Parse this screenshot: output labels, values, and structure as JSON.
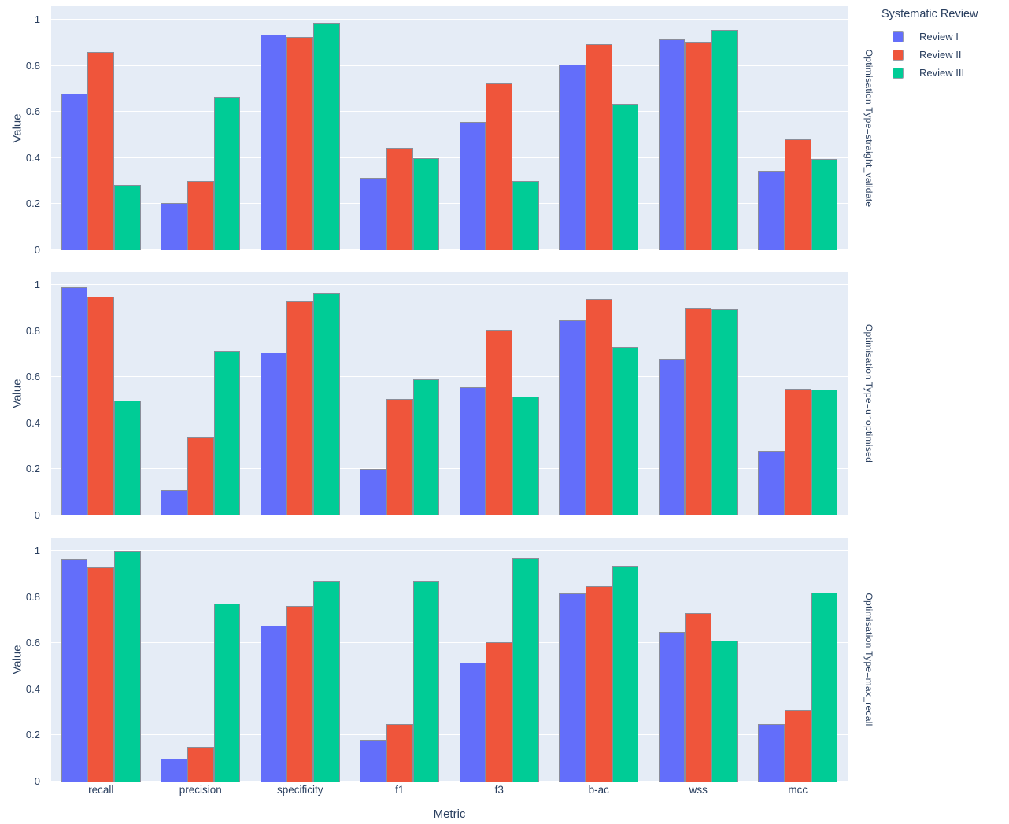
{
  "colors": {
    "plot_background": "#E5ECF6",
    "grid": "#FFFFFF",
    "text": "#2A3F5F",
    "bar_border": "#8A8D99",
    "series": [
      "#636EFA",
      "#EF553B",
      "#00CC96"
    ]
  },
  "legend": {
    "title": "Systematic Review",
    "entries": [
      {
        "label": "Review I",
        "color": "#636EFA"
      },
      {
        "label": "Review II",
        "color": "#EF553B"
      },
      {
        "label": "Review III",
        "color": "#00CC96"
      }
    ]
  },
  "axes": {
    "x_title": "Metric",
    "y_title": "Value",
    "y_ticks": [
      "0",
      "0.2",
      "0.4",
      "0.6",
      "0.8",
      "1"
    ],
    "y_tick_values": [
      0,
      0.2,
      0.4,
      0.6,
      0.8,
      1
    ]
  },
  "chart_data": {
    "type": "bar",
    "title": "",
    "xlabel": "Metric",
    "ylabel": "Value",
    "ylim": [
      0,
      1.058
    ],
    "grid": true,
    "legend_title": "Systematic Review",
    "legend_position": "top-right",
    "categories": [
      "recall",
      "precision",
      "specificity",
      "f1",
      "f3",
      "b-ac",
      "wss",
      "mcc"
    ],
    "facets": [
      {
        "label": "Optimisation Type=straight_validate",
        "series": [
          {
            "name": "Review I",
            "values": [
              0.68,
              0.205,
              0.935,
              0.315,
              0.555,
              0.805,
              0.915,
              0.345
            ]
          },
          {
            "name": "Review II",
            "values": [
              0.86,
              0.3,
              0.925,
              0.445,
              0.725,
              0.895,
              0.9,
              0.48
            ]
          },
          {
            "name": "Review III",
            "values": [
              0.285,
              0.665,
              0.985,
              0.4,
              0.3,
              0.635,
              0.955,
              0.395
            ]
          }
        ]
      },
      {
        "label": "Optimisation Type=unoptimised",
        "series": [
          {
            "name": "Review I",
            "values": [
              0.99,
              0.11,
              0.705,
              0.2,
              0.555,
              0.845,
              0.68,
              0.28
            ]
          },
          {
            "name": "Review II",
            "values": [
              0.95,
              0.34,
              0.93,
              0.505,
              0.805,
              0.94,
              0.9,
              0.55
            ]
          },
          {
            "name": "Review III",
            "values": [
              0.5,
              0.715,
              0.965,
              0.59,
              0.515,
              0.73,
              0.895,
              0.545
            ]
          }
        ]
      },
      {
        "label": "Optimisation Type=max_recall",
        "series": [
          {
            "name": "Review I",
            "values": [
              0.965,
              0.1,
              0.675,
              0.18,
              0.515,
              0.815,
              0.65,
              0.25
            ]
          },
          {
            "name": "Review II",
            "values": [
              0.93,
              0.15,
              0.76,
              0.25,
              0.605,
              0.845,
              0.73,
              0.31
            ]
          },
          {
            "name": "Review III",
            "values": [
              1.0,
              0.77,
              0.87,
              0.87,
              0.97,
              0.935,
              0.61,
              0.82
            ]
          }
        ]
      }
    ]
  }
}
